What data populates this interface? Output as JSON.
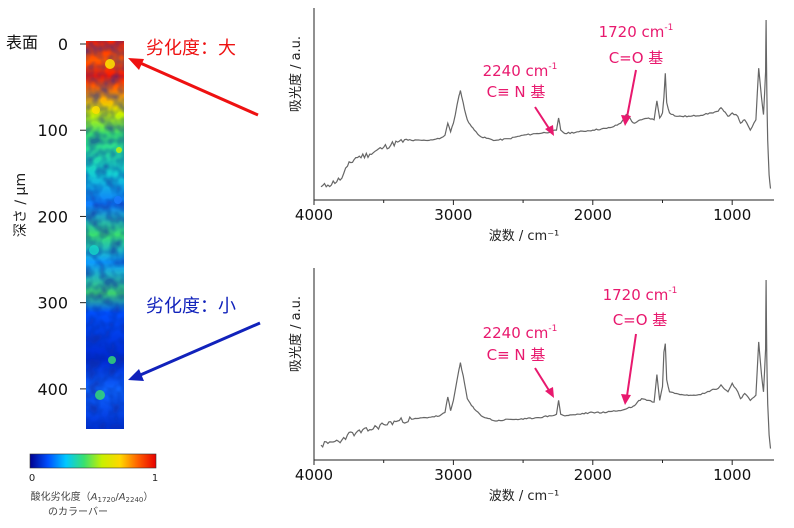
{
  "depth_map": {
    "surface_label": "表面",
    "ylabel": "深さ / µm",
    "yticks": [
      0,
      100,
      200,
      300,
      400
    ],
    "ylim": [
      0,
      450
    ],
    "colorbar": {
      "ticks": [
        "0",
        "1"
      ],
      "label_line1_parts": [
        "酸化劣化度（",
        "A",
        "1720",
        "/",
        "A",
        "2240",
        "）"
      ],
      "label_line2": "のカラーバー",
      "colors": [
        "#00008f",
        "#0050ff",
        "#00c8ff",
        "#38e070",
        "#c8f000",
        "#ffd800",
        "#ff6000",
        "#e80000"
      ]
    }
  },
  "annotations": {
    "high": {
      "label": "劣化度：大",
      "color": "#ee1111"
    },
    "low": {
      "label": "劣化度：小",
      "color": "#1122bb"
    }
  },
  "peak_labels": {
    "color": "#e8196e",
    "p2240_number": "2240 cm",
    "p2240_sup": "-1",
    "p2240_group": "C≡ N 基",
    "p1720_number": "1720 cm",
    "p1720_sup": "-1",
    "p1720_group": "C=O 基"
  },
  "chart_data": [
    {
      "type": "line",
      "name": "top",
      "xlabel": "波数 / cm⁻¹",
      "ylabel": "吸光度 / a.u.",
      "xlim": [
        4000,
        700
      ],
      "x_reversed": true,
      "xticks": [
        4000,
        3000,
        2000,
        1000
      ],
      "line_color": "#666666",
      "x": [
        3950,
        3900,
        3800,
        3760,
        3700,
        3600,
        3500,
        3400,
        3300,
        3200,
        3100,
        3060,
        3040,
        3020,
        3000,
        2960,
        2950,
        2920,
        2900,
        2870,
        2850,
        2800,
        2700,
        2600,
        2500,
        2400,
        2300,
        2260,
        2245,
        2230,
        2200,
        2100,
        2000,
        1900,
        1850,
        1800,
        1760,
        1740,
        1720,
        1700,
        1680,
        1650,
        1600,
        1560,
        1540,
        1520,
        1500,
        1490,
        1480,
        1470,
        1450,
        1400,
        1300,
        1200,
        1150,
        1100,
        1080,
        1060,
        1030,
        1000,
        960,
        940,
        910,
        870,
        830,
        810,
        790,
        775,
        760,
        757,
        752,
        745,
        735,
        725
      ],
      "y": [
        0.03,
        0.04,
        0.08,
        0.15,
        0.2,
        0.22,
        0.26,
        0.29,
        0.3,
        0.3,
        0.31,
        0.33,
        0.4,
        0.35,
        0.4,
        0.56,
        0.59,
        0.48,
        0.42,
        0.38,
        0.36,
        0.32,
        0.3,
        0.31,
        0.33,
        0.34,
        0.35,
        0.36,
        0.43,
        0.36,
        0.34,
        0.35,
        0.36,
        0.37,
        0.38,
        0.4,
        0.45,
        0.44,
        0.41,
        0.4,
        0.41,
        0.42,
        0.43,
        0.42,
        0.53,
        0.43,
        0.46,
        0.55,
        0.69,
        0.52,
        0.46,
        0.44,
        0.44,
        0.45,
        0.46,
        0.47,
        0.49,
        0.47,
        0.44,
        0.46,
        0.44,
        0.4,
        0.42,
        0.36,
        0.42,
        0.72,
        0.55,
        0.45,
        0.7,
        1.0,
        0.6,
        0.3,
        0.1,
        0.02
      ]
    },
    {
      "type": "line",
      "name": "bottom",
      "xlabel": "波数 / cm⁻¹",
      "ylabel": "吸光度 / a.u.",
      "xlim": [
        4000,
        700
      ],
      "x_reversed": true,
      "xticks": [
        4000,
        3000,
        2000,
        1000
      ],
      "line_color": "#666666",
      "x": [
        3950,
        3900,
        3800,
        3760,
        3700,
        3600,
        3500,
        3400,
        3300,
        3200,
        3100,
        3060,
        3040,
        3020,
        3000,
        2960,
        2950,
        2920,
        2900,
        2870,
        2850,
        2800,
        2700,
        2600,
        2500,
        2400,
        2300,
        2260,
        2245,
        2230,
        2200,
        2100,
        2000,
        1900,
        1850,
        1800,
        1760,
        1740,
        1720,
        1700,
        1680,
        1650,
        1600,
        1560,
        1540,
        1520,
        1500,
        1490,
        1480,
        1470,
        1450,
        1400,
        1300,
        1200,
        1150,
        1100,
        1080,
        1060,
        1030,
        1000,
        960,
        940,
        910,
        870,
        830,
        810,
        790,
        775,
        760,
        757,
        752,
        745,
        735,
        725
      ],
      "y": [
        0.04,
        0.05,
        0.07,
        0.1,
        0.11,
        0.13,
        0.16,
        0.18,
        0.19,
        0.2,
        0.21,
        0.23,
        0.32,
        0.24,
        0.3,
        0.48,
        0.52,
        0.4,
        0.31,
        0.27,
        0.25,
        0.21,
        0.18,
        0.19,
        0.19,
        0.2,
        0.21,
        0.22,
        0.3,
        0.22,
        0.21,
        0.22,
        0.23,
        0.23,
        0.24,
        0.24,
        0.25,
        0.26,
        0.26,
        0.27,
        0.29,
        0.31,
        0.3,
        0.29,
        0.45,
        0.3,
        0.38,
        0.58,
        0.63,
        0.42,
        0.35,
        0.34,
        0.33,
        0.34,
        0.36,
        0.37,
        0.39,
        0.37,
        0.35,
        0.4,
        0.35,
        0.31,
        0.34,
        0.3,
        0.33,
        0.64,
        0.45,
        0.35,
        0.6,
        1.0,
        0.55,
        0.28,
        0.1,
        0.02
      ]
    }
  ]
}
